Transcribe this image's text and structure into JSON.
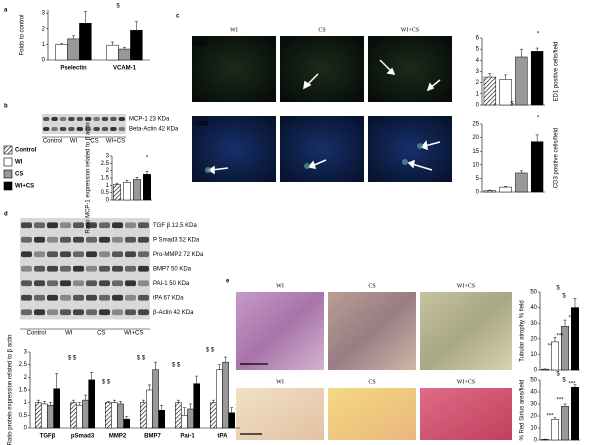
{
  "chart_data": [
    {
      "type": "bar",
      "ylabel": "Folds to control",
      "categories": [
        "Pselectin",
        "VCAM-1"
      ],
      "ylim": [
        0,
        3.2
      ],
      "yticks": [
        0,
        1,
        2,
        3
      ],
      "series": [
        {
          "color": "#ffffff",
          "values": [
            1,
            0.95
          ],
          "errors": [
            0.05,
            0.2
          ]
        },
        {
          "color": "#999999",
          "values": [
            1.35,
            0.7
          ],
          "errors": [
            0.2,
            0.1
          ]
        },
        {
          "color": "#000000",
          "values": [
            2.35,
            1.9
          ],
          "errors": [
            0.75,
            0.55
          ]
        }
      ],
      "annotations": [
        "$"
      ]
    },
    {
      "type": "bar",
      "ylabel": "Ratio MCP-1 expression related to β actin",
      "ylim": [
        0,
        3
      ],
      "yticks": [
        0,
        0.5,
        1,
        1.5,
        2,
        2.5,
        3
      ],
      "values": [
        1.05,
        1.2,
        1.4,
        1.75
      ],
      "errors": [
        0.1,
        0.15,
        0.15,
        0.2
      ],
      "bar_colors": [
        "#ffffff",
        "#ffffff",
        "#999999",
        "#000000"
      ],
      "hatch": [
        true,
        false,
        false,
        false
      ],
      "annotations": [
        "*"
      ]
    },
    {
      "type": "bar",
      "ylabel": "ED1 positive cells/field",
      "ylim": [
        0,
        6
      ],
      "yticks": [
        0,
        1,
        2,
        3,
        4,
        5,
        6
      ],
      "values": [
        2.5,
        2.3,
        4.3,
        4.8
      ],
      "errors": [
        0.3,
        0.4,
        0.7,
        0.3
      ],
      "bar_colors": [
        "#ffffff",
        "#ffffff",
        "#999999",
        "#000000"
      ],
      "hatch": [
        true,
        false,
        false,
        false
      ],
      "annotations": [
        "*"
      ]
    },
    {
      "type": "bar",
      "ylabel": "CD3 positive cells/field",
      "ylim": [
        0,
        25
      ],
      "yticks": [
        0,
        5,
        10,
        15,
        20,
        25
      ],
      "values": [
        0.5,
        1.8,
        7,
        18.5
      ],
      "errors": [
        0.2,
        0.3,
        0.8,
        2.5
      ],
      "bar_colors": [
        "#ffffff",
        "#ffffff",
        "#999999",
        "#000000"
      ],
      "hatch": [
        true,
        false,
        false,
        false
      ],
      "annotations": [
        "$",
        "*"
      ]
    },
    {
      "type": "bar",
      "ylabel": "Ratio protein expression related to β actin",
      "categories": [
        "TGFβ",
        "pSmad3",
        "MMP2",
        "BMP7",
        "Pai-1",
        "tPA"
      ],
      "ylim": [
        0,
        3
      ],
      "yticks": [
        0,
        0.5,
        1,
        1.5,
        2,
        2.5,
        3
      ],
      "series": [
        {
          "color": "#ffffff",
          "hatch": true,
          "values": [
            1,
            1,
            1,
            1,
            1,
            1
          ],
          "errors": [
            0.1,
            0.1,
            0.05,
            0.1,
            0.1,
            0.1
          ]
        },
        {
          "color": "#ffffff",
          "values": [
            0.95,
            0.9,
            1,
            1.5,
            0.5,
            2.3
          ],
          "errors": [
            0.1,
            0.1,
            0.1,
            0.2,
            0.3,
            0.2
          ]
        },
        {
          "color": "#999999",
          "values": [
            0.9,
            1.1,
            0.95,
            2.3,
            0.75,
            2.6
          ],
          "errors": [
            0.1,
            0.2,
            0.1,
            0.3,
            0.2,
            0.2
          ]
        },
        {
          "color": "#000000",
          "values": [
            1.55,
            1.9,
            0.35,
            0.7,
            1.75,
            0.6
          ],
          "errors": [
            0.6,
            0.3,
            0.1,
            0.2,
            0.3,
            0.2
          ]
        }
      ],
      "annotations": [
        "$ $",
        "$ $",
        "$ $",
        "$ $",
        "$ $"
      ]
    },
    {
      "type": "bar",
      "ylabel": "Tubular atrophy % field",
      "ylim": [
        0,
        50
      ],
      "yticks": [
        0,
        10,
        20,
        30,
        40,
        50
      ],
      "values": [
        0.5,
        18,
        28,
        40
      ],
      "errors": [
        0.2,
        3,
        4,
        6
      ],
      "bar_colors": [
        "#ffffff",
        "#ffffff",
        "#999999",
        "#000000"
      ],
      "hatch": [
        true,
        false,
        false,
        false
      ],
      "annotations": [
        "**",
        "***",
        "***",
        "$",
        "$"
      ]
    },
    {
      "type": "bar",
      "ylabel": "% Red Sirius area/field",
      "ylim": [
        0,
        50
      ],
      "yticks": [
        0,
        10,
        20,
        30,
        40,
        50
      ],
      "values": [
        0.5,
        17,
        28,
        44
      ],
      "errors": [
        0.2,
        1.5,
        2,
        2
      ],
      "bar_colors": [
        "#ffffff",
        "#ffffff",
        "#999999",
        "#000000"
      ],
      "hatch": [
        true,
        false,
        false,
        false
      ],
      "annotations": [
        "***",
        "***",
        "***",
        "$",
        "$"
      ]
    }
  ],
  "legend": [
    {
      "name": "Control",
      "color": "#ffffff",
      "hatch": true
    },
    {
      "name": "WI",
      "color": "#ffffff"
    },
    {
      "name": "CS",
      "color": "#999999"
    },
    {
      "name": "WI+CS",
      "color": "#000000"
    }
  ],
  "letters": [
    "a",
    "b",
    "c",
    "d",
    "e"
  ],
  "c_columns": [
    "WI",
    "CS",
    "WI+CS"
  ],
  "c_rows": [
    "ED1",
    "CD3"
  ],
  "e_columns": [
    "WI",
    "CS",
    "WI+CS"
  ],
  "b_blot": {
    "bands": [
      "MCP-1 23 KDa",
      "Beta-Actin 42 KDa"
    ],
    "lanes": [
      "Control",
      "WI",
      "CS",
      "WI+CS"
    ]
  },
  "d_blot": {
    "bands": [
      "TGF β 12.5 KDa",
      "P Smad3 52 KDa",
      "Pro-MMP2 72 KDa",
      "BMP7 50 KDa",
      "PAI-1 50 KDa",
      "tPA 67 KDa",
      "β-Actin 42 KDa"
    ],
    "lanes": [
      "Control",
      "WI",
      "CS",
      "WI+CS"
    ]
  }
}
